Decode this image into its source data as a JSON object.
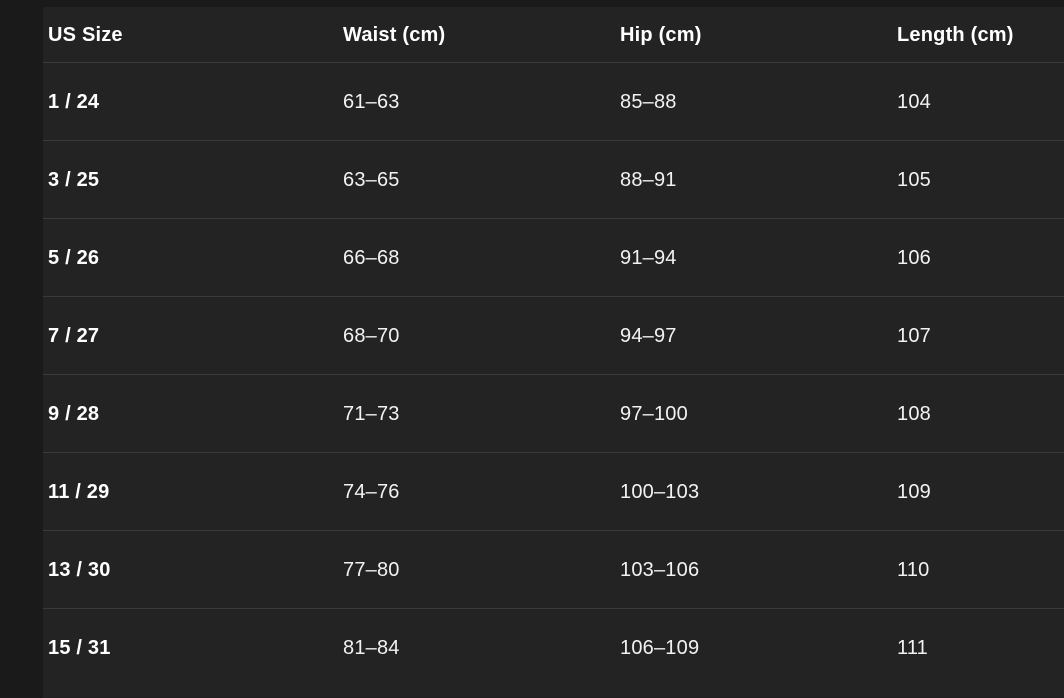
{
  "size_chart": {
    "columns": [
      "US Size",
      "Waist (cm)",
      "Hip (cm)",
      "Length (cm)"
    ],
    "rows": [
      [
        "1 / 24",
        "61–63",
        "85–88",
        "104"
      ],
      [
        "3 / 25",
        "63–65",
        "88–91",
        "105"
      ],
      [
        "5 / 26",
        "66–68",
        "91–94",
        "106"
      ],
      [
        "7 / 27",
        "68–70",
        "94–97",
        "107"
      ],
      [
        "9 / 28",
        "71–73",
        "97–100",
        "108"
      ],
      [
        "11 / 29",
        "74–76",
        "100–103",
        "109"
      ],
      [
        "13 / 30",
        "77–80",
        "103–106",
        "110"
      ],
      [
        "15 / 31",
        "81–84",
        "106–109",
        "111"
      ]
    ]
  },
  "colors": {
    "page_background": "#1a1a1a",
    "table_background": "#232323",
    "divider": "#3a3a3c",
    "header_text": "#ffffff",
    "body_text": "#f2f2f2"
  }
}
